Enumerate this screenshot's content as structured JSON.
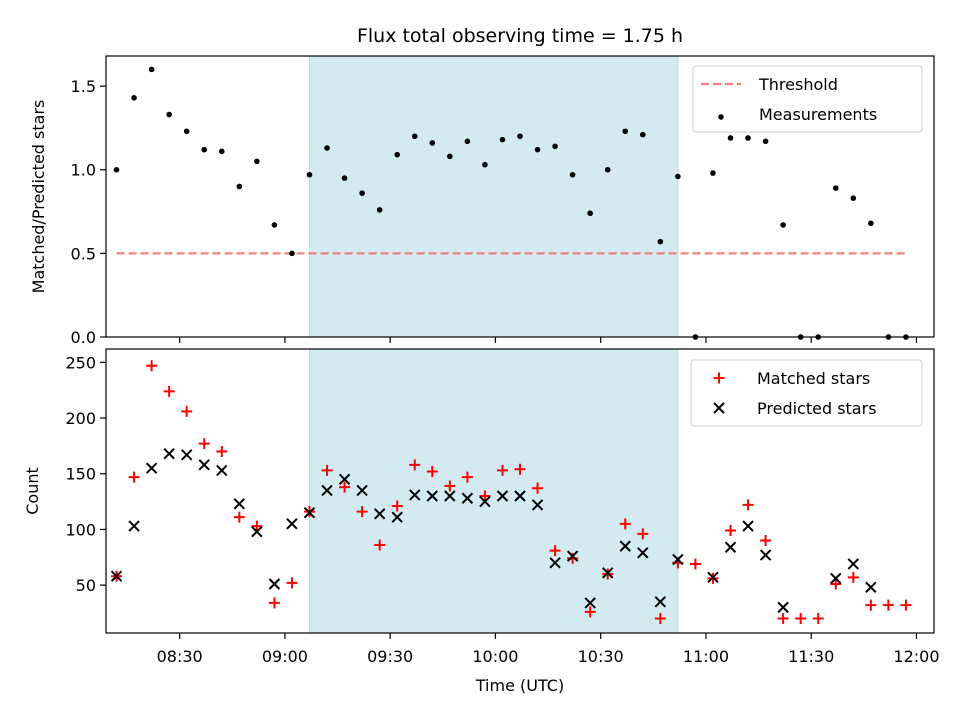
{
  "chart_data": [
    {
      "type": "scatter",
      "title": "Flux total observing time = 1.75 h",
      "xlabel": "",
      "ylabel": "Matched/Predicted stars",
      "ylim": [
        0,
        1.68
      ],
      "yticks": [
        "0.0",
        "0.5",
        "1.0",
        "1.5"
      ],
      "xlim": [
        "08:09",
        "12:05"
      ],
      "highlight_span": {
        "start": "09:07",
        "end": "10:52",
        "color": "#d3eaf0"
      },
      "legend": {
        "placement": "upper right",
        "entries": [
          "Threshold",
          "Measurements"
        ]
      },
      "series": [
        {
          "name": "Threshold",
          "kind": "dashed-line",
          "color": "#f08080",
          "x": [
            "08:12",
            "11:57"
          ],
          "y": [
            0.5,
            0.5
          ]
        },
        {
          "name": "Measurements",
          "kind": "dot",
          "color": "#000000",
          "x": [
            "08:12",
            "08:17",
            "08:22",
            "08:27",
            "08:32",
            "08:37",
            "08:42",
            "08:47",
            "08:52",
            "08:57",
            "09:02",
            "09:07",
            "09:12",
            "09:17",
            "09:22",
            "09:27",
            "09:32",
            "09:37",
            "09:42",
            "09:47",
            "09:52",
            "09:57",
            "10:02",
            "10:07",
            "10:12",
            "10:17",
            "10:22",
            "10:27",
            "10:32",
            "10:37",
            "10:42",
            "10:47",
            "10:52",
            "10:57",
            "11:02",
            "11:07",
            "11:12",
            "11:17",
            "11:22",
            "11:27",
            "11:32",
            "11:37",
            "11:42",
            "11:47",
            "11:52",
            "11:57"
          ],
          "y": [
            1.0,
            1.43,
            1.6,
            1.33,
            1.23,
            1.12,
            1.11,
            0.9,
            1.05,
            0.67,
            0.5,
            0.97,
            1.13,
            0.95,
            0.86,
            0.76,
            1.09,
            1.2,
            1.16,
            1.08,
            1.17,
            1.03,
            1.18,
            1.2,
            1.12,
            1.14,
            0.97,
            0.74,
            1.0,
            1.23,
            1.21,
            0.57,
            0.96,
            0.0,
            0.98,
            1.19,
            1.19,
            1.17,
            0.67,
            0.0,
            0.0,
            0.89,
            0.83,
            0.68,
            0.0,
            0.0
          ]
        }
      ]
    },
    {
      "type": "scatter",
      "title": "",
      "xlabel": "Time (UTC)",
      "ylabel": "Count",
      "ylim": [
        7,
        262
      ],
      "yticks": [
        "50",
        "100",
        "150",
        "200",
        "250"
      ],
      "xlim": [
        "08:09",
        "12:05"
      ],
      "xticks": [
        "08:30",
        "09:00",
        "09:30",
        "10:00",
        "10:30",
        "11:00",
        "11:30",
        "12:00"
      ],
      "highlight_span": {
        "start": "09:07",
        "end": "10:52",
        "color": "#d3eaf0"
      },
      "legend": {
        "placement": "upper right",
        "entries": [
          "Matched stars",
          "Predicted stars"
        ]
      },
      "series": [
        {
          "name": "Matched stars",
          "kind": "plus",
          "color": "#ff0000",
          "x": [
            "08:12",
            "08:17",
            "08:22",
            "08:27",
            "08:32",
            "08:37",
            "08:42",
            "08:47",
            "08:52",
            "08:57",
            "09:02",
            "09:07",
            "09:12",
            "09:17",
            "09:22",
            "09:27",
            "09:32",
            "09:37",
            "09:42",
            "09:47",
            "09:52",
            "09:57",
            "10:02",
            "10:07",
            "10:12",
            "10:17",
            "10:22",
            "10:27",
            "10:32",
            "10:37",
            "10:42",
            "10:47",
            "10:52",
            "10:57",
            "11:02",
            "11:07",
            "11:12",
            "11:17",
            "11:22",
            "11:27",
            "11:32",
            "11:37",
            "11:42",
            "11:47",
            "11:52",
            "11:57"
          ],
          "y": [
            58,
            147,
            247,
            224,
            206,
            177,
            170,
            111,
            103,
            34,
            52,
            116,
            153,
            138,
            116,
            86,
            121,
            158,
            152,
            139,
            147,
            130,
            153,
            154,
            137,
            81,
            74,
            26,
            60,
            105,
            96,
            20,
            70,
            69,
            56,
            99,
            122,
            90,
            20,
            20,
            20,
            51,
            57,
            32,
            32,
            32
          ]
        },
        {
          "name": "Predicted stars",
          "kind": "x",
          "color": "#000000",
          "x": [
            "08:12",
            "08:17",
            "08:22",
            "08:27",
            "08:32",
            "08:37",
            "08:42",
            "08:47",
            "08:52",
            "08:57",
            "09:02",
            "09:07",
            "09:12",
            "09:17",
            "09:22",
            "09:27",
            "09:32",
            "09:37",
            "09:42",
            "09:47",
            "09:52",
            "09:57",
            "10:02",
            "10:07",
            "10:12",
            "10:17",
            "10:22",
            "10:27",
            "10:32",
            "10:37",
            "10:42",
            "10:47",
            "10:52",
            "11:02",
            "11:07",
            "11:12",
            "11:17",
            "11:22",
            "11:37",
            "11:42",
            "11:47"
          ],
          "y": [
            58,
            103,
            155,
            168,
            167,
            158,
            153,
            123,
            98,
            51,
            105,
            115,
            135,
            145,
            135,
            114,
            111,
            131,
            130,
            130,
            128,
            125,
            130,
            130,
            122,
            70,
            76,
            34,
            61,
            85,
            79,
            35,
            73,
            57,
            84,
            103,
            77,
            30,
            56,
            69,
            48
          ]
        }
      ]
    }
  ]
}
